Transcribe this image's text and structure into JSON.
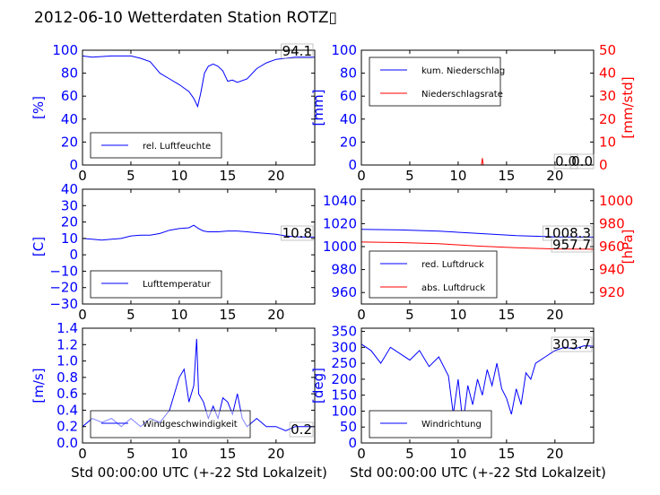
{
  "title": "2012-06-10 Wetterdaten Station ROTZ▯",
  "xlabel": "Std 00:00:00 UTC (+-22 Std Lokalzeit)",
  "chart_data": [
    {
      "type": "line",
      "ylabel": "[%]",
      "ylim": [
        0,
        100
      ],
      "yticks": [
        0,
        20,
        40,
        60,
        80,
        100
      ],
      "xlim": [
        0,
        24
      ],
      "xticks": [
        0,
        5,
        10,
        15,
        20
      ],
      "legend_placement": "lower-left",
      "series": [
        {
          "name": "rel. Luftfeuchte",
          "color": "#0000ff",
          "x": [
            0,
            1,
            3,
            5,
            6,
            7,
            7.5,
            8,
            9,
            10,
            11,
            11.5,
            11.9,
            12.2,
            12.6,
            13,
            13.5,
            14,
            14.5,
            15,
            15.5,
            16,
            17,
            18,
            19,
            20,
            21,
            22,
            23,
            24
          ],
          "y": [
            95,
            94,
            95,
            95,
            93,
            90,
            85,
            80,
            75,
            70,
            64,
            58,
            51,
            62,
            80,
            86,
            88,
            86,
            82,
            73,
            74,
            72,
            75,
            84,
            89,
            92,
            93,
            94,
            94,
            94
          ]
        }
      ],
      "annotations": [
        {
          "text": "94.1",
          "y": 94.1
        }
      ]
    },
    {
      "type": "line",
      "ylabel": "[mm]",
      "ylabel_right": "[mm/std]",
      "ylim": [
        0,
        100
      ],
      "yticks": [
        0,
        20,
        40,
        60,
        80,
        100
      ],
      "ylim_right": [
        0,
        50
      ],
      "yticks_right": [
        0,
        10,
        20,
        30,
        40,
        50
      ],
      "xlim": [
        0,
        24
      ],
      "xticks": [
        0,
        5,
        10,
        15,
        20
      ],
      "legend_placement": "upper-left",
      "series": [
        {
          "name": "kum. Niederschlag",
          "color": "#0000ff",
          "axis": "left",
          "x": [
            0,
            24
          ],
          "y": [
            0,
            0
          ]
        },
        {
          "name": "Niederschlagsrate",
          "color": "#ff0000",
          "axis": "right",
          "x": [
            0,
            12.4,
            12.45,
            12.5,
            12.55,
            12.6,
            24
          ],
          "y": [
            0,
            0,
            1.5,
            3,
            1.5,
            0,
            0
          ]
        }
      ],
      "annotations": [
        {
          "text": "0.0",
          "y": 0
        },
        {
          "text": "0.0",
          "y": 0
        }
      ]
    },
    {
      "type": "line",
      "ylabel": "[C]",
      "ylim": [
        -30,
        40
      ],
      "yticks": [
        -30,
        -20,
        -10,
        0,
        10,
        20,
        30,
        40
      ],
      "xlim": [
        0,
        24
      ],
      "xticks": [
        0,
        5,
        10,
        15,
        20
      ],
      "legend_placement": "lower-left",
      "series": [
        {
          "name": "Lufttemperatur",
          "color": "#0000ff",
          "x": [
            0,
            1,
            2,
            3,
            4,
            5,
            6,
            7,
            8,
            9,
            10,
            11,
            11.5,
            12,
            12.5,
            13,
            14,
            15,
            16,
            17,
            18,
            19,
            20,
            21,
            22,
            23,
            24
          ],
          "y": [
            10,
            9.5,
            9,
            9.5,
            10,
            11.5,
            12,
            12,
            13,
            15,
            16,
            16.5,
            18,
            16,
            14.5,
            14,
            14,
            14.5,
            14.5,
            14,
            13.5,
            13,
            12.5,
            11.5,
            11,
            10.8,
            10.8
          ]
        }
      ],
      "annotations": [
        {
          "text": "10.8",
          "y": 10.8
        }
      ]
    },
    {
      "type": "line",
      "ylim": [
        950,
        1050
      ],
      "yticks": [
        960,
        980,
        1000,
        1020,
        1040
      ],
      "ylabel_right": "[hPa]",
      "ylim_right": [
        910,
        1010
      ],
      "yticks_right": [
        920,
        940,
        960,
        980,
        1000
      ],
      "xlim": [
        0,
        24
      ],
      "xticks": [
        0,
        5,
        10,
        15,
        20
      ],
      "legend_placement": "lower-left",
      "series": [
        {
          "name": "red. Luftdruck",
          "color": "#0000ff",
          "axis": "left",
          "x": [
            0,
            4,
            8,
            12,
            16,
            20,
            24
          ],
          "y": [
            1015,
            1014.5,
            1013.5,
            1011.5,
            1009.5,
            1008.5,
            1008.3
          ]
        },
        {
          "name": "abs. Luftdruck",
          "color": "#ff0000",
          "axis": "right",
          "x": [
            0,
            4,
            8,
            12,
            16,
            20,
            24
          ],
          "y": [
            964,
            963.5,
            962.5,
            960.5,
            959,
            958,
            957.7
          ]
        }
      ],
      "annotations": [
        {
          "text": "1008.3",
          "y": 1008.3
        },
        {
          "text": "957.7",
          "y": 957.7
        }
      ]
    },
    {
      "type": "line",
      "ylabel": "[m/s]",
      "ylim": [
        0,
        1.4
      ],
      "yticks": [
        0.0,
        0.2,
        0.4,
        0.6,
        0.8,
        1.0,
        1.2,
        1.4
      ],
      "xlim": [
        0,
        24
      ],
      "xticks": [
        0,
        5,
        10,
        15,
        20
      ],
      "legend_placement": "lower-left",
      "series": [
        {
          "name": "Windgeschwindigkeit",
          "color": "#0000ff",
          "x": [
            0,
            1,
            2,
            3,
            4,
            5,
            6,
            7,
            8,
            9,
            9.5,
            10,
            10.5,
            11,
            11.5,
            11.8,
            12,
            12.5,
            13,
            13.5,
            14,
            14.5,
            15,
            15.5,
            16,
            16.5,
            17,
            18,
            19,
            20,
            21,
            22,
            23,
            24
          ],
          "y": [
            0.2,
            0.3,
            0.25,
            0.3,
            0.2,
            0.3,
            0.2,
            0.3,
            0.25,
            0.4,
            0.6,
            0.8,
            0.9,
            0.5,
            0.7,
            1.27,
            0.6,
            0.5,
            0.3,
            0.45,
            0.3,
            0.55,
            0.5,
            0.35,
            0.6,
            0.3,
            0.2,
            0.3,
            0.2,
            0.2,
            0.15,
            0.2,
            0.2,
            0.2
          ]
        }
      ],
      "annotations": [
        {
          "text": "0.2",
          "y": 0.2
        }
      ]
    },
    {
      "type": "line",
      "ylabel": "[deg]",
      "ylim": [
        0,
        360
      ],
      "yticks": [
        0,
        50,
        100,
        150,
        200,
        250,
        300,
        350
      ],
      "xlim": [
        0,
        24
      ],
      "xticks": [
        0,
        5,
        10,
        15,
        20
      ],
      "legend_placement": "lower-left",
      "series": [
        {
          "name": "Windrichtung",
          "color": "#0000ff",
          "x": [
            0,
            1,
            2,
            3,
            4,
            5,
            6,
            7,
            8,
            9,
            9.5,
            10,
            10.5,
            11,
            11.5,
            12,
            12.5,
            13,
            13.5,
            14,
            14.5,
            15,
            15.5,
            16,
            16.5,
            17,
            17.5,
            18,
            19,
            20,
            21,
            22,
            23,
            24
          ],
          "y": [
            310,
            290,
            250,
            300,
            280,
            260,
            290,
            240,
            270,
            210,
            90,
            200,
            60,
            180,
            120,
            200,
            150,
            230,
            180,
            250,
            170,
            140,
            90,
            170,
            120,
            220,
            200,
            250,
            270,
            290,
            300,
            295,
            305,
            303.7
          ]
        }
      ],
      "annotations": [
        {
          "text": "303.7",
          "y": 303.7
        }
      ]
    }
  ]
}
